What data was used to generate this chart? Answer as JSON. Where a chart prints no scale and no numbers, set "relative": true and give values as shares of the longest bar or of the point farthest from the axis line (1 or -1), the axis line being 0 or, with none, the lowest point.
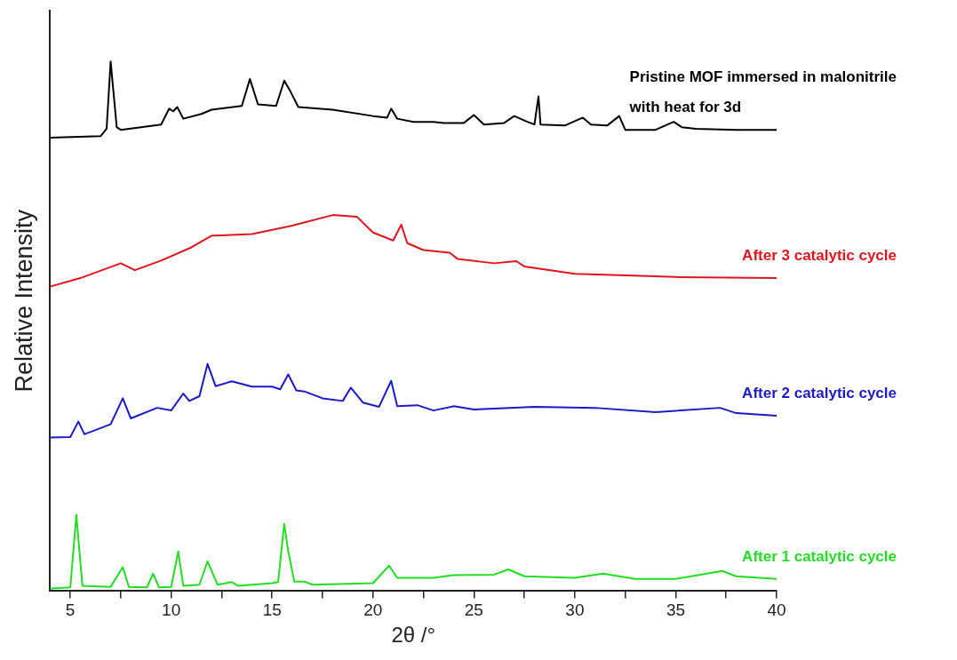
{
  "chart_data": {
    "type": "line",
    "relative": true,
    "xlabel": "2θ /°",
    "ylabel": "Relative Intensity",
    "xlim": [
      4,
      40
    ],
    "xticks": [
      5,
      {
        "value": 7.5,
        "label": null
      },
      10,
      {
        "value": 12.5,
        "label": null
      },
      15,
      {
        "value": 17.5,
        "label": null
      },
      20,
      {
        "value": 22.5,
        "label": null
      },
      25,
      {
        "value": 27.5,
        "label": null
      },
      30,
      {
        "value": 32.5,
        "label": null
      },
      35,
      {
        "value": 37.5,
        "label": null
      },
      40
    ],
    "grid": false,
    "legend": false,
    "marker": "none",
    "line_style": "solid",
    "series": [
      {
        "name": "Pristine MOF immersed in malonitrile with heat for 3d",
        "color": "#000000",
        "x": [
          4,
          6.5,
          6.8,
          7.0,
          7.3,
          7.5,
          9.5,
          9.9,
          10.1,
          10.3,
          10.6,
          11.5,
          12,
          13.5,
          13.9,
          14.3,
          15.2,
          15.6,
          15.9,
          16.3,
          18,
          20,
          20.7,
          20.9,
          21.2,
          22,
          23,
          23.5,
          24.5,
          25,
          25.5,
          26.5,
          27,
          27.6,
          28.0,
          28.2,
          28.3,
          29.5,
          30.4,
          30.8,
          31.6,
          32.2,
          32.5,
          34,
          34.9,
          35.3,
          36,
          38,
          40
        ],
        "values": [
          0.856,
          0.859,
          0.873,
          1,
          0.876,
          0.871,
          0.881,
          0.911,
          0.906,
          0.914,
          0.892,
          0.901,
          0.909,
          0.916,
          0.967,
          0.919,
          0.916,
          0.964,
          0.944,
          0.914,
          0.909,
          0.897,
          0.894,
          0.911,
          0.892,
          0.886,
          0.886,
          0.884,
          0.884,
          0.899,
          0.881,
          0.884,
          0.897,
          0.887,
          0.881,
          0.934,
          0.881,
          0.879,
          0.894,
          0.881,
          0.879,
          0.897,
          0.871,
          0.871,
          0.886,
          0.876,
          0.873,
          0.871,
          0.871
        ]
      },
      {
        "name": "After 3 catalytic cycle",
        "color": "#e0141c",
        "x": [
          4,
          5.5,
          7.5,
          8.2,
          9.5,
          11,
          12,
          14,
          16,
          18,
          19.2,
          20,
          21,
          21.4,
          21.7,
          22.5,
          23.8,
          24.2,
          26,
          27.1,
          27.5,
          30,
          35,
          40
        ],
        "values": [
          0.575,
          0.591,
          0.619,
          0.606,
          0.624,
          0.649,
          0.671,
          0.674,
          0.69,
          0.71,
          0.707,
          0.677,
          0.662,
          0.692,
          0.657,
          0.644,
          0.639,
          0.627,
          0.619,
          0.623,
          0.613,
          0.599,
          0.593,
          0.591
        ]
      },
      {
        "name": "After 2 catalytic cycle",
        "color": "#1a1ac8",
        "x": [
          4,
          5.0,
          5.4,
          5.7,
          7,
          7.6,
          8.0,
          9.3,
          10,
          10.6,
          10.9,
          11.4,
          11.8,
          12.2,
          13,
          14,
          15,
          15.4,
          15.8,
          16.2,
          16.6,
          17.5,
          18.5,
          18.9,
          19.5,
          20.3,
          20.9,
          21.2,
          22.2,
          23,
          24,
          25,
          28,
          31,
          34,
          37.2,
          38,
          40
        ],
        "values": [
          0.29,
          0.291,
          0.32,
          0.296,
          0.315,
          0.364,
          0.326,
          0.346,
          0.341,
          0.373,
          0.359,
          0.368,
          0.429,
          0.387,
          0.396,
          0.386,
          0.386,
          0.381,
          0.409,
          0.379,
          0.377,
          0.364,
          0.359,
          0.384,
          0.356,
          0.348,
          0.397,
          0.349,
          0.351,
          0.341,
          0.349,
          0.343,
          0.348,
          0.346,
          0.338,
          0.346,
          0.336,
          0.331
        ]
      },
      {
        "name": "After 1 catalytic cycle",
        "color": "#22dd22",
        "x": [
          4,
          5.0,
          5.3,
          5.6,
          7,
          7.6,
          7.9,
          8.8,
          9.1,
          9.4,
          10.0,
          10.35,
          10.6,
          11.4,
          11.8,
          12.3,
          13,
          13.3,
          15,
          15.3,
          15.6,
          15.8,
          16.1,
          16.6,
          17,
          20,
          20.8,
          21.2,
          22,
          23,
          24,
          26,
          26.7,
          27.5,
          30,
          31.4,
          33,
          35,
          37.3,
          38,
          40
        ],
        "values": [
          0.005,
          0.007,
          0.144,
          0.01,
          0.008,
          0.045,
          0.008,
          0.007,
          0.033,
          0.007,
          0.008,
          0.075,
          0.01,
          0.012,
          0.056,
          0.012,
          0.017,
          0.01,
          0.015,
          0.017,
          0.127,
          0.075,
          0.018,
          0.018,
          0.012,
          0.015,
          0.048,
          0.025,
          0.025,
          0.025,
          0.03,
          0.031,
          0.041,
          0.028,
          0.025,
          0.033,
          0.023,
          0.023,
          0.038,
          0.028,
          0.023
        ]
      }
    ]
  }
}
